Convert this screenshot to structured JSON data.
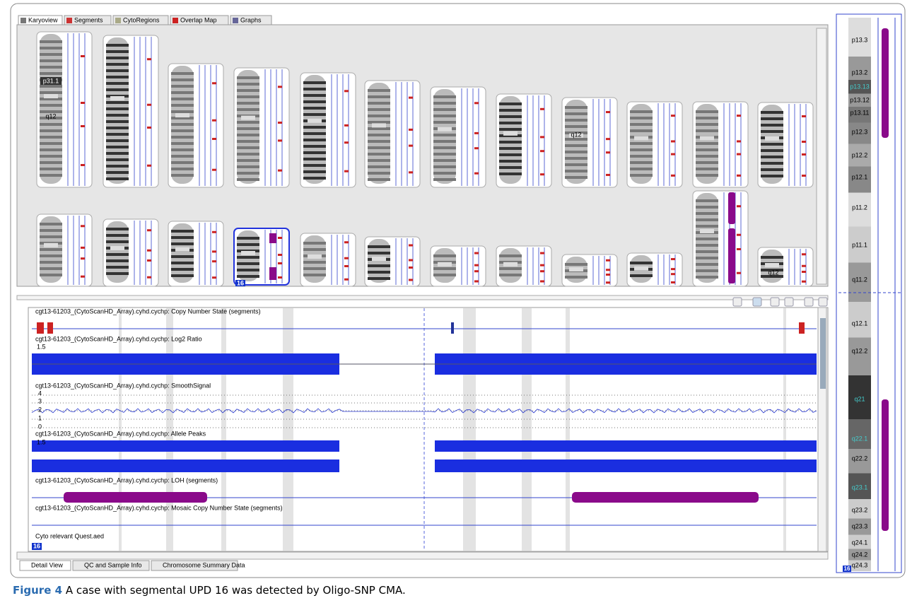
{
  "top_tabs": [
    "Karyoview",
    "Segments",
    "CytoRegions",
    "Overlap Map",
    "Graphs"
  ],
  "karyoview": {
    "chr1_bands": [
      "p31.1",
      "q12"
    ],
    "chr9_band": "q12",
    "selected_chromosome": "16",
    "last_band": "q12"
  },
  "detail": {
    "tracks": [
      "cgt13-61203_(CytoScanHD_Array).cyhd.cychp: Copy Number State (segments)",
      "cgt13-61203_(CytoScanHD_Array).cyhd.cychp: Log2 Ratio",
      "cgt13-61203_(CytoScanHD_Array).cyhd.cychp: SmoothSignal",
      "cgt13-61203_(CytoScanHD_Array).cyhd.cychp: Allele Peaks",
      "cgt13-61203_(CytoScanHD_Array).cyhd.cychp: LOH (segments)",
      "cgt13-61203_(CytoScanHD_Array).cyhd.cychp: Mosaic Copy Number State (segments)",
      "Cyto relevant Quest.aed"
    ],
    "log2_label": "1.5",
    "smooth_labels": [
      "4",
      "3",
      "2",
      "1",
      "0"
    ],
    "allele_label": "1.5",
    "chromosome": "16"
  },
  "bottom_tabs": [
    "Detail View",
    "QC and Sample Info",
    "Chromosome Summary Data"
  ],
  "ideogram": {
    "bands": [
      "p13.3",
      "p13.2",
      "p13.13",
      "p13.12",
      "p13.11",
      "p12.3",
      "p12.2",
      "p12.1",
      "p11.2",
      "p11.1",
      "q11.2",
      "q12.1",
      "q12.2",
      "q21",
      "q22.1",
      "q22.2",
      "q23.1",
      "q23.2",
      "q23.3",
      "q24.1",
      "q24.2",
      "q24.3"
    ],
    "chromosome": "16"
  },
  "caption": {
    "label": "Figure 4",
    "text": "A case with segmental UPD 16 was detected by Oligo-SNP CMA."
  }
}
